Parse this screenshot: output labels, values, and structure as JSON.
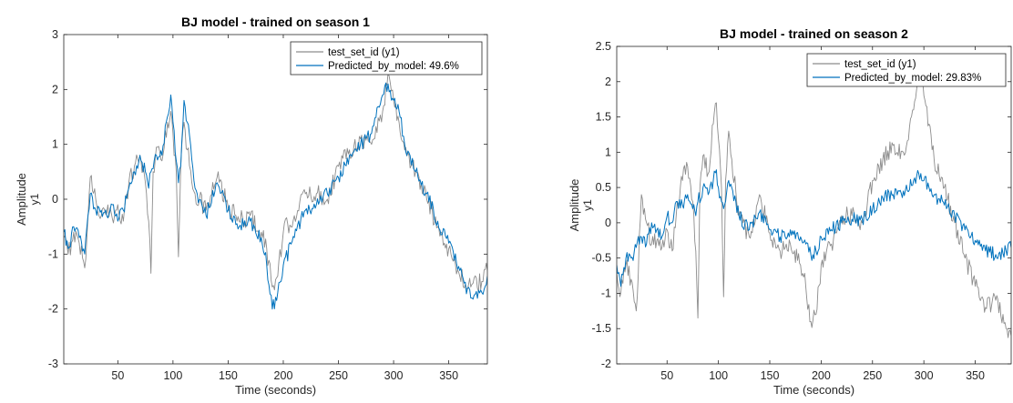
{
  "chart_data": [
    {
      "type": "line",
      "title": "BJ model - trained on season 1",
      "xlabel": "Time (seconds)",
      "ylabel": "Amplitude",
      "channel_label": "y1",
      "xlim": [
        1,
        385
      ],
      "ylim": [
        -3,
        3
      ],
      "xticks": [
        50,
        100,
        150,
        200,
        250,
        300,
        350
      ],
      "yticks": [
        -3,
        -2,
        -1,
        0,
        1,
        2,
        3
      ],
      "legend_position": "top-right",
      "grid": false,
      "series": [
        {
          "name": "test_set_id (y1)",
          "color": "#8c8c8c",
          "keypoints": [
            [
              1,
              -0.7
            ],
            [
              5,
              -1.0
            ],
            [
              10,
              -0.6
            ],
            [
              15,
              -0.8
            ],
            [
              20,
              -1.25
            ],
            [
              25,
              0.4
            ],
            [
              30,
              0.0
            ],
            [
              35,
              -0.3
            ],
            [
              40,
              -0.25
            ],
            [
              45,
              -0.35
            ],
            [
              50,
              -0.1
            ],
            [
              55,
              -0.4
            ],
            [
              60,
              0.3
            ],
            [
              65,
              0.6
            ],
            [
              70,
              0.8
            ],
            [
              75,
              0.3
            ],
            [
              78,
              -0.4
            ],
            [
              80,
              -1.35
            ],
            [
              82,
              0.5
            ],
            [
              85,
              0.95
            ],
            [
              90,
              0.7
            ],
            [
              95,
              1.4
            ],
            [
              98,
              1.6
            ],
            [
              100,
              1.2
            ],
            [
              103,
              0.5
            ],
            [
              105,
              -1.05
            ],
            [
              107,
              0.6
            ],
            [
              110,
              1.4
            ],
            [
              113,
              0.9
            ],
            [
              120,
              0.1
            ],
            [
              130,
              -0.2
            ],
            [
              140,
              0.4
            ],
            [
              150,
              -0.15
            ],
            [
              160,
              -0.4
            ],
            [
              170,
              -0.3
            ],
            [
              180,
              -0.6
            ],
            [
              185,
              -0.9
            ],
            [
              190,
              -1.6
            ],
            [
              195,
              -1.4
            ],
            [
              200,
              -0.6
            ],
            [
              210,
              -0.3
            ],
            [
              220,
              0.1
            ],
            [
              230,
              0.1
            ],
            [
              240,
              0.0
            ],
            [
              250,
              0.6
            ],
            [
              260,
              0.9
            ],
            [
              270,
              1.1
            ],
            [
              280,
              1.0
            ],
            [
              290,
              1.6
            ],
            [
              295,
              2.3
            ],
            [
              300,
              1.8
            ],
            [
              305,
              1.4
            ],
            [
              310,
              0.9
            ],
            [
              320,
              0.5
            ],
            [
              330,
              0.0
            ],
            [
              340,
              -0.5
            ],
            [
              350,
              -0.9
            ],
            [
              360,
              -1.4
            ],
            [
              370,
              -1.6
            ],
            [
              380,
              -1.5
            ],
            [
              385,
              -1.3
            ]
          ]
        },
        {
          "name": "Predicted_by_model: 49.6%",
          "color": "#0072bd",
          "keypoints": [
            [
              1,
              -0.6
            ],
            [
              5,
              -0.9
            ],
            [
              10,
              -0.5
            ],
            [
              15,
              -0.7
            ],
            [
              20,
              -1.0
            ],
            [
              25,
              0.1
            ],
            [
              30,
              -0.2
            ],
            [
              35,
              -0.2
            ],
            [
              40,
              -0.3
            ],
            [
              45,
              -0.1
            ],
            [
              50,
              -0.4
            ],
            [
              55,
              -0.2
            ],
            [
              60,
              0.2
            ],
            [
              65,
              0.5
            ],
            [
              70,
              0.8
            ],
            [
              75,
              0.5
            ],
            [
              78,
              0.2
            ],
            [
              80,
              0.5
            ],
            [
              85,
              0.8
            ],
            [
              90,
              0.8
            ],
            [
              95,
              1.5
            ],
            [
              98,
              1.9
            ],
            [
              100,
              1.4
            ],
            [
              103,
              0.7
            ],
            [
              105,
              0.3
            ],
            [
              107,
              0.6
            ],
            [
              110,
              1.8
            ],
            [
              113,
              1.4
            ],
            [
              120,
              0.2
            ],
            [
              130,
              -0.3
            ],
            [
              140,
              0.3
            ],
            [
              150,
              -0.2
            ],
            [
              160,
              -0.5
            ],
            [
              170,
              -0.4
            ],
            [
              180,
              -0.7
            ],
            [
              185,
              -1.2
            ],
            [
              190,
              -2.0
            ],
            [
              195,
              -1.7
            ],
            [
              200,
              -1.2
            ],
            [
              210,
              -0.7
            ],
            [
              220,
              -0.2
            ],
            [
              230,
              -0.1
            ],
            [
              240,
              0.1
            ],
            [
              250,
              0.4
            ],
            [
              260,
              0.8
            ],
            [
              270,
              1.0
            ],
            [
              280,
              1.2
            ],
            [
              290,
              1.9
            ],
            [
              295,
              2.1
            ],
            [
              300,
              1.8
            ],
            [
              305,
              1.6
            ],
            [
              310,
              1.0
            ],
            [
              320,
              0.5
            ],
            [
              330,
              0.1
            ],
            [
              340,
              -0.4
            ],
            [
              350,
              -0.8
            ],
            [
              360,
              -1.3
            ],
            [
              370,
              -1.8
            ],
            [
              380,
              -1.7
            ],
            [
              385,
              -1.4
            ]
          ]
        }
      ]
    },
    {
      "type": "line",
      "title": "BJ model - trained on season 2",
      "xlabel": "Time (seconds)",
      "ylabel": "Amplitude",
      "channel_label": "y1",
      "xlim": [
        1,
        385
      ],
      "ylim": [
        -2,
        2.5
      ],
      "xticks": [
        50,
        100,
        150,
        200,
        250,
        300,
        350
      ],
      "yticks": [
        -2,
        -1.5,
        -1,
        -0.5,
        0,
        0.5,
        1,
        1.5,
        2,
        2.5
      ],
      "legend_position": "top-right",
      "grid": false,
      "series": [
        {
          "name": "test_set_id (y1)",
          "color": "#8c8c8c",
          "keypoints": [
            [
              1,
              -0.7
            ],
            [
              5,
              -1.0
            ],
            [
              10,
              -0.6
            ],
            [
              15,
              -0.8
            ],
            [
              20,
              -1.25
            ],
            [
              25,
              0.4
            ],
            [
              30,
              0.0
            ],
            [
              35,
              -0.3
            ],
            [
              40,
              -0.25
            ],
            [
              45,
              -0.35
            ],
            [
              50,
              -0.1
            ],
            [
              55,
              -0.4
            ],
            [
              60,
              0.3
            ],
            [
              65,
              0.6
            ],
            [
              70,
              0.8
            ],
            [
              75,
              0.3
            ],
            [
              78,
              -0.4
            ],
            [
              80,
              -1.35
            ],
            [
              82,
              0.5
            ],
            [
              85,
              0.95
            ],
            [
              90,
              0.7
            ],
            [
              95,
              1.4
            ],
            [
              98,
              1.7
            ],
            [
              100,
              1.2
            ],
            [
              103,
              0.5
            ],
            [
              105,
              -1.05
            ],
            [
              107,
              0.6
            ],
            [
              110,
              1.3
            ],
            [
              113,
              0.9
            ],
            [
              120,
              0.1
            ],
            [
              130,
              -0.2
            ],
            [
              140,
              0.4
            ],
            [
              150,
              -0.15
            ],
            [
              160,
              -0.4
            ],
            [
              170,
              -0.3
            ],
            [
              180,
              -0.6
            ],
            [
              185,
              -0.9
            ],
            [
              190,
              -1.4
            ],
            [
              195,
              -1.3
            ],
            [
              200,
              -0.6
            ],
            [
              210,
              -0.3
            ],
            [
              220,
              0.1
            ],
            [
              230,
              0.1
            ],
            [
              240,
              0.0
            ],
            [
              250,
              0.6
            ],
            [
              260,
              0.9
            ],
            [
              270,
              1.1
            ],
            [
              280,
              1.0
            ],
            [
              290,
              1.6
            ],
            [
              295,
              2.3
            ],
            [
              300,
              1.8
            ],
            [
              305,
              1.4
            ],
            [
              310,
              0.9
            ],
            [
              320,
              0.5
            ],
            [
              330,
              0.0
            ],
            [
              340,
              -0.5
            ],
            [
              350,
              -0.9
            ],
            [
              360,
              -1.2
            ],
            [
              370,
              -1.1
            ],
            [
              380,
              -1.5
            ],
            [
              385,
              -1.6
            ]
          ]
        },
        {
          "name": "Predicted_by_model: 29.83%",
          "color": "#0072bd",
          "keypoints": [
            [
              1,
              -0.6
            ],
            [
              5,
              -0.9
            ],
            [
              10,
              -0.5
            ],
            [
              15,
              -0.5
            ],
            [
              20,
              -0.35
            ],
            [
              25,
              -0.2
            ],
            [
              30,
              -0.3
            ],
            [
              35,
              0.0
            ],
            [
              40,
              -0.1
            ],
            [
              45,
              -0.2
            ],
            [
              50,
              0.1
            ],
            [
              55,
              0.0
            ],
            [
              60,
              0.3
            ],
            [
              65,
              0.25
            ],
            [
              70,
              0.4
            ],
            [
              75,
              0.2
            ],
            [
              78,
              0.1
            ],
            [
              80,
              0.3
            ],
            [
              85,
              0.5
            ],
            [
              90,
              0.4
            ],
            [
              95,
              0.6
            ],
            [
              98,
              0.75
            ],
            [
              100,
              0.5
            ],
            [
              103,
              0.3
            ],
            [
              105,
              0.2
            ],
            [
              107,
              0.3
            ],
            [
              110,
              0.6
            ],
            [
              113,
              0.5
            ],
            [
              120,
              0.1
            ],
            [
              130,
              -0.1
            ],
            [
              140,
              0.15
            ],
            [
              150,
              -0.1
            ],
            [
              160,
              -0.2
            ],
            [
              170,
              -0.1
            ],
            [
              180,
              -0.2
            ],
            [
              185,
              -0.3
            ],
            [
              190,
              -0.45
            ],
            [
              195,
              -0.4
            ],
            [
              200,
              -0.2
            ],
            [
              210,
              -0.1
            ],
            [
              220,
              0.0
            ],
            [
              230,
              0.05
            ],
            [
              240,
              0.05
            ],
            [
              250,
              0.2
            ],
            [
              260,
              0.35
            ],
            [
              270,
              0.4
            ],
            [
              280,
              0.45
            ],
            [
              290,
              0.6
            ],
            [
              295,
              0.7
            ],
            [
              300,
              0.6
            ],
            [
              305,
              0.5
            ],
            [
              310,
              0.4
            ],
            [
              320,
              0.25
            ],
            [
              330,
              0.1
            ],
            [
              340,
              -0.1
            ],
            [
              350,
              -0.25
            ],
            [
              360,
              -0.4
            ],
            [
              370,
              -0.45
            ],
            [
              380,
              -0.4
            ],
            [
              385,
              -0.35
            ]
          ]
        }
      ]
    }
  ]
}
